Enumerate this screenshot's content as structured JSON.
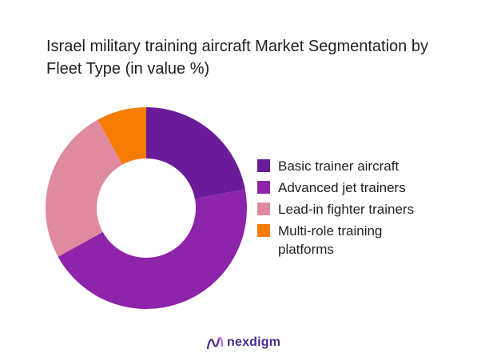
{
  "chart_data": {
    "type": "pie",
    "title": "Israel military training aircraft Market Segmentation by Fleet Type (in value %)",
    "categories": [
      "Basic trainer aircraft",
      "Advanced jet trainers",
      "Lead-in fighter trainers",
      "Multi-role training platforms"
    ],
    "values": [
      22,
      45,
      25,
      8
    ],
    "colors": [
      "#6a1b9a",
      "#8e24aa",
      "#e08aa0",
      "#f57c00"
    ],
    "legend_position": "right",
    "donut": true
  },
  "brand": {
    "name": "nexdigm",
    "color": "#4a2a8a"
  }
}
